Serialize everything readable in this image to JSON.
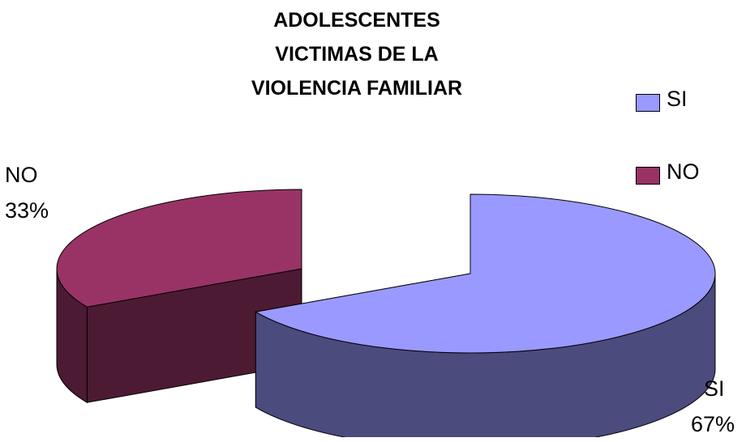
{
  "chart_data": {
    "type": "pie",
    "title_lines": [
      "ADOLESCENTES",
      "VICTIMAS DE LA",
      "VIOLENCIA FAMILIAR"
    ],
    "categories": [
      "SI",
      "NO"
    ],
    "values": [
      67,
      33
    ],
    "value_suffix": "%",
    "style": "3d-exploded",
    "legend_position": "right",
    "colors": {
      "SI": {
        "top": "#9999FF",
        "side": "#4B4B7D"
      },
      "NO": {
        "top": "#993366",
        "side": "#4D1A33"
      }
    },
    "legend": [
      {
        "label": "SI",
        "color": "#9999FF"
      },
      {
        "label": "NO",
        "color": "#993366"
      }
    ],
    "data_labels": [
      {
        "name": "SI",
        "percent": "67%"
      },
      {
        "name": "NO",
        "percent": "33%"
      }
    ]
  }
}
